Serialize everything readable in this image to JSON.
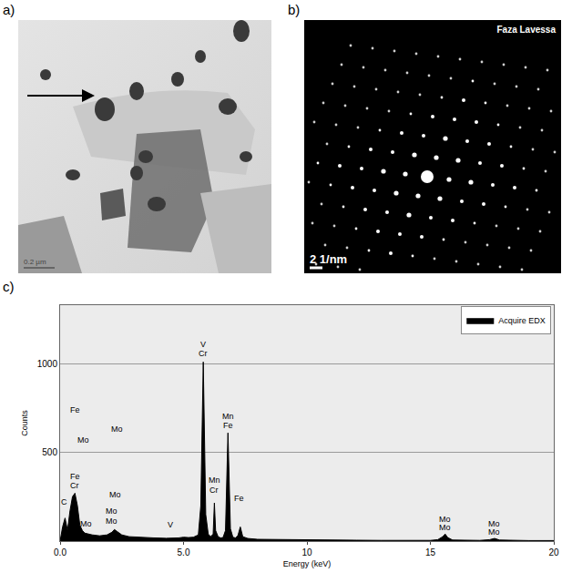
{
  "panels": [
    {
      "label": "a)",
      "scale_bar": "0.2 µm"
    },
    {
      "label": "b)",
      "caption": "Faza Lavessa",
      "scale_bar": "2 1/nm"
    }
  ],
  "chart_label": "c)",
  "chart_data": {
    "type": "area",
    "xlabel": "Energy (keV)",
    "ylabel": "Counts",
    "x": [
      0.0,
      0.1,
      0.2,
      0.3,
      0.4,
      0.5,
      0.6,
      0.7,
      0.8,
      0.9,
      1.0,
      1.3,
      1.6,
      1.9,
      2.1,
      2.2,
      2.3,
      2.5,
      2.8,
      3.3,
      3.8,
      4.3,
      4.6,
      4.8,
      5.0,
      5.2,
      5.4,
      5.6,
      5.7,
      5.8,
      5.9,
      6.0,
      6.1,
      6.2,
      6.25,
      6.3,
      6.4,
      6.5,
      6.6,
      6.7,
      6.8,
      6.9,
      7.0,
      7.1,
      7.2,
      7.3,
      7.4,
      7.6,
      8.0,
      9.0,
      10.0,
      11.0,
      12.0,
      13.0,
      14.0,
      15.0,
      15.3,
      15.5,
      15.6,
      15.7,
      15.9,
      16.5,
      17.0,
      17.4,
      17.6,
      17.8,
      18.2,
      19.0,
      20.0
    ],
    "series": [
      {
        "name": "Acquire EDX",
        "color": "#000000",
        "values": [
          0,
          80,
          130,
          60,
          170,
          250,
          270,
          200,
          90,
          60,
          45,
          35,
          30,
          35,
          50,
          65,
          55,
          35,
          25,
          20,
          18,
          16,
          16,
          18,
          22,
          20,
          22,
          35,
          200,
          1010,
          150,
          40,
          25,
          40,
          215,
          60,
          25,
          18,
          20,
          60,
          610,
          70,
          22,
          18,
          30,
          80,
          25,
          15,
          10,
          8,
          6,
          5,
          5,
          4,
          4,
          4,
          8,
          25,
          40,
          20,
          6,
          4,
          4,
          8,
          15,
          6,
          4,
          3,
          3
        ]
      }
    ],
    "xlim": [
      0,
      20
    ],
    "xticks": [
      {
        "value": 0,
        "label": "0.0"
      },
      {
        "value": 5,
        "label": "5.0"
      },
      10,
      15,
      20
    ],
    "ylim": [
      0,
      1330
    ],
    "yticks": [
      500,
      1000
    ],
    "grid": true,
    "legend": "upper right",
    "annotations": [
      {
        "text": "C",
        "x": 0.15,
        "y": 220
      },
      {
        "text": "Fe",
        "x": 0.6,
        "y": 740
      },
      {
        "text": "Mo",
        "x": 0.95,
        "y": 570
      },
      {
        "text": "Mo",
        "x": 2.3,
        "y": 630
      },
      {
        "text": "Fe",
        "x": 0.6,
        "y": 365
      },
      {
        "text": "Cr",
        "x": 0.6,
        "y": 312
      },
      {
        "text": "Mo",
        "x": 2.25,
        "y": 260
      },
      {
        "text": "Mo",
        "x": 2.1,
        "y": 170
      },
      {
        "text": "Mo",
        "x": 2.1,
        "y": 115
      },
      {
        "text": "Mo",
        "x": 1.05,
        "y": 100
      },
      {
        "text": "V",
        "x": 4.45,
        "y": 90
      },
      {
        "text": "V",
        "x": 5.8,
        "y": 1110
      },
      {
        "text": "Cr",
        "x": 5.8,
        "y": 1060
      },
      {
        "text": "Mn",
        "x": 6.8,
        "y": 705
      },
      {
        "text": "Fe",
        "x": 6.8,
        "y": 650
      },
      {
        "text": "Mn",
        "x": 6.25,
        "y": 345
      },
      {
        "text": "Cr",
        "x": 6.25,
        "y": 290
      },
      {
        "text": "Fe",
        "x": 7.25,
        "y": 240
      },
      {
        "text": "Mo",
        "x": 15.6,
        "y": 125
      },
      {
        "text": "Mo",
        "x": 15.6,
        "y": 75
      },
      {
        "text": "Mo",
        "x": 17.6,
        "y": 100
      },
      {
        "text": "Mo",
        "x": 17.6,
        "y": 50
      }
    ]
  }
}
